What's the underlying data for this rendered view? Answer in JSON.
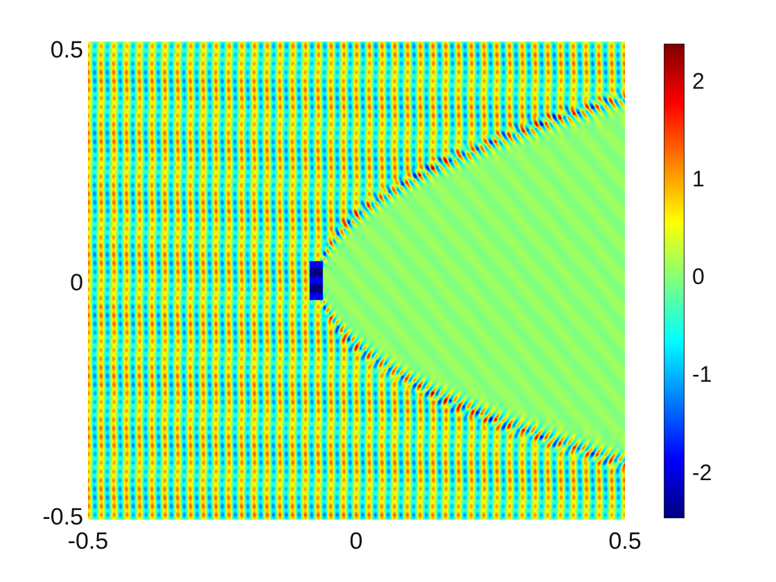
{
  "chart_data": {
    "type": "heatmap",
    "title": "",
    "xlabel": "",
    "ylabel": "",
    "xlim": [
      -0.5,
      0.5
    ],
    "ylim": [
      -0.5,
      0.5
    ],
    "x_ticks": [
      "-0.5",
      "0",
      "0.5"
    ],
    "y_ticks": [
      "0.5",
      "0",
      "-0.5"
    ],
    "colorbar": {
      "range": [
        -2.5,
        2.35
      ],
      "ticks": [
        "2",
        "1",
        "0",
        "-1",
        "-2"
      ],
      "colormap": "jet"
    },
    "field": {
      "description_of_values": "oscillatory wave field with vertical wavefronts; near-zero values inside a parabolic shadow region opening toward +x with vertex near x=-0.07, y=0; strongest peaks (about 2.3) and troughs (about -2.4) along the shadow boundary",
      "shadow_vertex": [
        -0.07,
        0.0
      ],
      "shadow_halfwidth_at_x_0_5": 0.38,
      "background_amplitude": 1.2,
      "max_value": 2.3,
      "min_value": -2.4
    },
    "grid": false,
    "legend": "none"
  }
}
